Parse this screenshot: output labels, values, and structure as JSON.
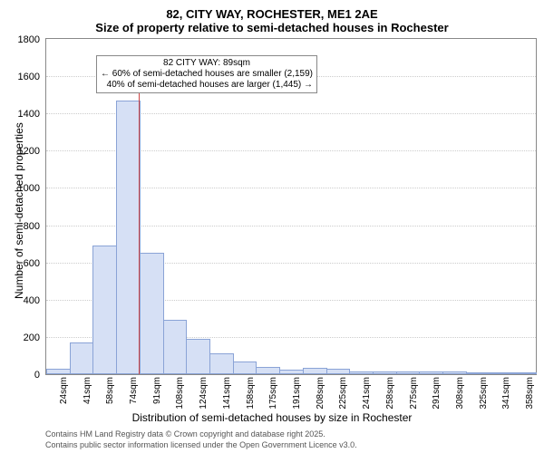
{
  "title_main": "82, CITY WAY, ROCHESTER, ME1 2AE",
  "title_sub": "Size of property relative to semi-detached houses in Rochester",
  "chart": {
    "type": "histogram",
    "y_label": "Number of semi-detached properties",
    "x_label": "Distribution of semi-detached houses by size in Rochester",
    "ylim": [
      0,
      1800
    ],
    "ytick_step": 200,
    "yticks": [
      0,
      200,
      400,
      600,
      800,
      1000,
      1200,
      1400,
      1600,
      1800
    ],
    "xticks": [
      "24sqm",
      "41sqm",
      "58sqm",
      "74sqm",
      "91sqm",
      "108sqm",
      "124sqm",
      "141sqm",
      "158sqm",
      "175sqm",
      "191sqm",
      "208sqm",
      "225sqm",
      "241sqm",
      "258sqm",
      "275sqm",
      "291sqm",
      "308sqm",
      "325sqm",
      "341sqm",
      "358sqm"
    ],
    "bars": [
      20,
      160,
      680,
      1460,
      640,
      280,
      180,
      100,
      60,
      30,
      15,
      25,
      20,
      5,
      5,
      5,
      3,
      3,
      2,
      2,
      2
    ],
    "bar_color": "#d6e0f5",
    "bar_border": "#8aa3d6",
    "grid_color": "#cccccc",
    "background_color": "#ffffff",
    "plot_border": "#888888",
    "annotation": {
      "line1": "82 CITY WAY: 89sqm",
      "line2": "← 60% of semi-detached houses are smaller (2,159)",
      "line3": "40% of semi-detached houses are larger (1,445) →",
      "box_border": "#888888",
      "marker_color": "#cc4444"
    }
  },
  "footer": {
    "line1": "Contains HM Land Registry data © Crown copyright and database right 2025.",
    "line2": "Contains public sector information licensed under the Open Government Licence v3.0."
  }
}
